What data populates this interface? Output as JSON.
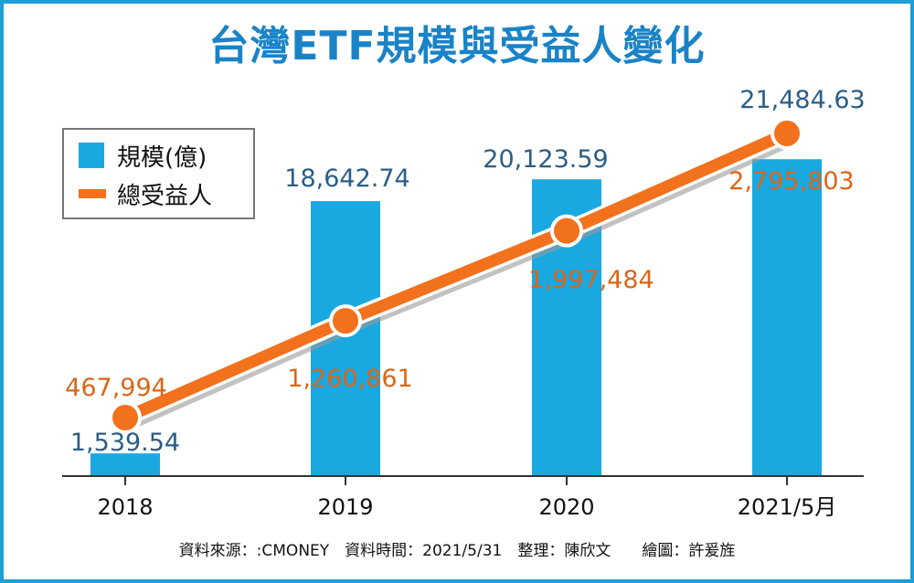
{
  "title": "台灣ETF規模與受益人變化",
  "legend": {
    "bar_label": "規模(億)",
    "line_label": "總受益人"
  },
  "source_line": "資料來源：:CMONEY　資料時間：2021/5/31　整理：陳欣文　　繪圖：許爰旌",
  "colors": {
    "bar": "#1aa8e0",
    "line": "#f2711c",
    "frame": "#1e9fd6",
    "title": "#1a83c7"
  },
  "chart_data": {
    "type": "bar",
    "title": "台灣ETF規模與受益人變化",
    "categories": [
      "2018",
      "2019",
      "2020",
      "2021/5月"
    ],
    "series": [
      {
        "name": "規模(億)",
        "type": "bar",
        "values": [
          1539.54,
          18642.74,
          20123.59,
          21484.63
        ],
        "labels": [
          "1,539.54",
          "18,642.74",
          "20,123.59",
          "21,484.63"
        ]
      },
      {
        "name": "總受益人",
        "type": "line",
        "values": [
          467994,
          1260861,
          1997484,
          2795803
        ],
        "labels": [
          "467,994",
          "1,260,861",
          "1,997,484",
          "2,795,803"
        ]
      }
    ],
    "xlabel": "",
    "ylabel": "",
    "grid": false,
    "legend_position": "top-left"
  }
}
